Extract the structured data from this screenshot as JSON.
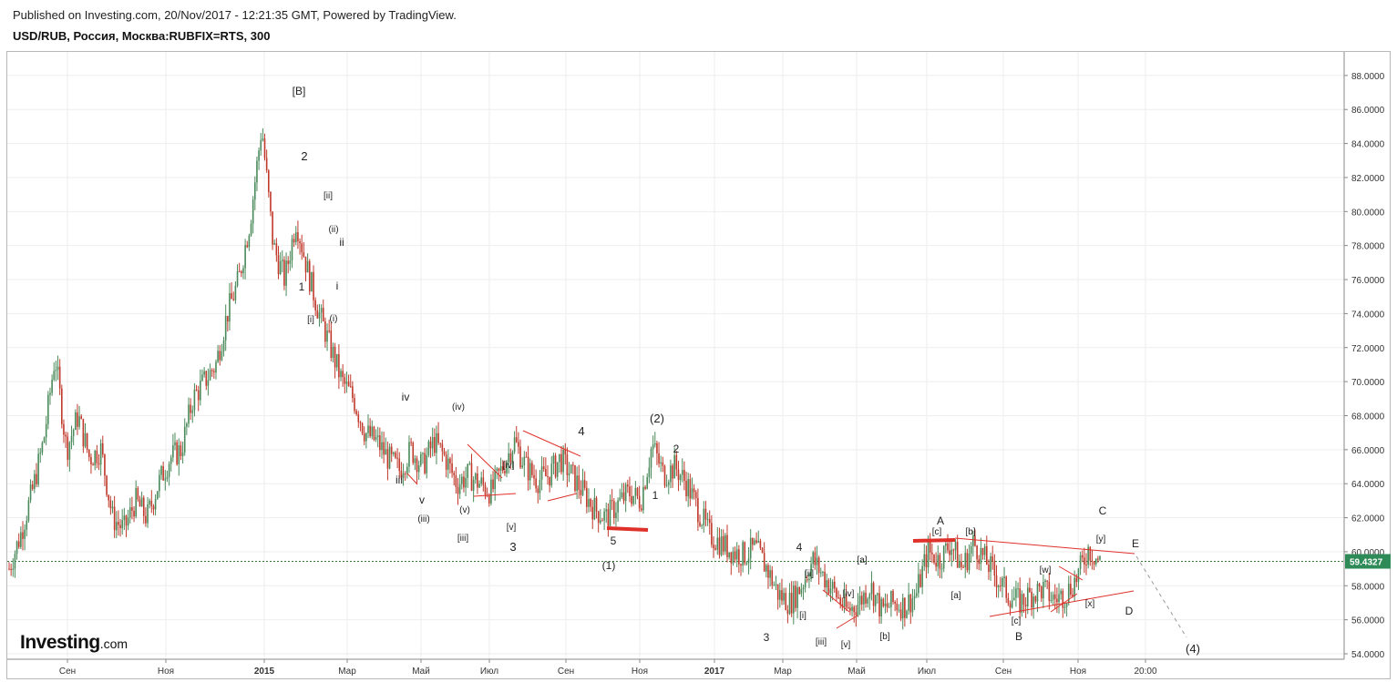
{
  "header": {
    "published": "Published on Investing.com, 20/Nov/2017 - 12:21:35 GMT, Powered by TradingView.",
    "symbol": "USD/RUB, Россия, Москва:RUBFIX=RTS, 300"
  },
  "logo": {
    "main": "Investing",
    "suffix": ".com"
  },
  "colors": {
    "up": "#4a8a5a",
    "down": "#c0392b",
    "annotation": "#e0302a",
    "price_line": "#2e7d32",
    "grid": "#eeeeee"
  },
  "chart_data": {
    "type": "line",
    "title": "USD/RUB, Россия, Москва:RUBFIX=RTS, 300",
    "ylim": [
      54,
      89
    ],
    "x_ticks": [
      "Сен",
      "Ноя",
      "2015",
      "Мар",
      "Май",
      "Июл",
      "Сен",
      "Ноя",
      "2017",
      "Мар",
      "Май",
      "Июл",
      "Сен",
      "Ноя",
      "20:00"
    ],
    "y_ticks": [
      "54.0000",
      "56.0000",
      "58.0000",
      "60.0000",
      "62.0000",
      "64.0000",
      "66.0000",
      "68.0000",
      "70.0000",
      "72.0000",
      "74.0000",
      "76.0000",
      "78.0000",
      "80.0000",
      "82.0000",
      "84.0000",
      "86.0000",
      "88.0000"
    ],
    "current_price": "59.4327",
    "series": [
      {
        "values": [
          {
            "x": "2014-08",
            "y": 59.0
          },
          {
            "x": "2014-08",
            "y": 61.0
          },
          {
            "x": "2014-08",
            "y": 63.5
          },
          {
            "x": "2014-09",
            "y": 66.5
          },
          {
            "x": "2014-09",
            "y": 71.5
          },
          {
            "x": "2014-09",
            "y": 66.0
          },
          {
            "x": "2014-10",
            "y": 68.0
          },
          {
            "x": "2014-10",
            "y": 65.5
          },
          {
            "x": "2014-10",
            "y": 66.0
          },
          {
            "x": "2014-11",
            "y": 62.0
          },
          {
            "x": "2014-11",
            "y": 61.3
          },
          {
            "x": "2014-11",
            "y": 63.0
          },
          {
            "x": "2014-12",
            "y": 62.0
          },
          {
            "x": "2014-12",
            "y": 64.0
          },
          {
            "x": "2014-12",
            "y": 65.5
          },
          {
            "x": "2014-12",
            "y": 66.0
          },
          {
            "x": "2015-01",
            "y": 69.0
          },
          {
            "x": "2015-01",
            "y": 70.0
          },
          {
            "x": "2015-01",
            "y": 71.0
          },
          {
            "x": "2015-01",
            "y": 74.0
          },
          {
            "x": "2015-02",
            "y": 76.0
          },
          {
            "x": "2015-02",
            "y": 79.5
          },
          {
            "x": "2015-02",
            "y": 85.0
          },
          {
            "x": "2015-02",
            "y": 78.0
          },
          {
            "x": "2015-02",
            "y": 76.0
          },
          {
            "x": "2015-02",
            "y": 79.5
          },
          {
            "x": "2015-03",
            "y": 76.5
          },
          {
            "x": "2015-03",
            "y": 74.0
          },
          {
            "x": "2015-03",
            "y": 72.0
          },
          {
            "x": "2015-03",
            "y": 70.0
          },
          {
            "x": "2015-04",
            "y": 69.0
          },
          {
            "x": "2015-04",
            "y": 67.0
          },
          {
            "x": "2015-04",
            "y": 66.5
          },
          {
            "x": "2015-04",
            "y": 65.5
          },
          {
            "x": "2015-05",
            "y": 64.8
          },
          {
            "x": "2015-05",
            "y": 66.0
          },
          {
            "x": "2015-05",
            "y": 65.0
          },
          {
            "x": "2015-05",
            "y": 66.5
          },
          {
            "x": "2015-06",
            "y": 65.5
          },
          {
            "x": "2015-06",
            "y": 64.0
          },
          {
            "x": "2015-06",
            "y": 64.5
          },
          {
            "x": "2015-07",
            "y": 64.0
          },
          {
            "x": "2015-07",
            "y": 63.5
          },
          {
            "x": "2015-07",
            "y": 65.0
          },
          {
            "x": "2015-08",
            "y": 66.5
          },
          {
            "x": "2015-08",
            "y": 65.0
          },
          {
            "x": "2015-08",
            "y": 64.2
          },
          {
            "x": "2015-09",
            "y": 64.5
          },
          {
            "x": "2015-09",
            "y": 65.5
          },
          {
            "x": "2015-09",
            "y": 64.5
          },
          {
            "x": "2015-10",
            "y": 63.5
          },
          {
            "x": "2015-10",
            "y": 62.5
          },
          {
            "x": "2015-10",
            "y": 62.0
          },
          {
            "x": "2015-11",
            "y": 62.8
          },
          {
            "x": "2015-11",
            "y": 63.5
          },
          {
            "x": "2015-11",
            "y": 63.0
          },
          {
            "x": "2015-11",
            "y": 66.3
          },
          {
            "x": "2015-12",
            "y": 64.5
          },
          {
            "x": "2015-12",
            "y": 65.0
          },
          {
            "x": "2015-12",
            "y": 64.0
          },
          {
            "x": "2016-01",
            "y": 62.5
          },
          {
            "x": "2016-01",
            "y": 61.0
          },
          {
            "x": "2016-01",
            "y": 60.5
          },
          {
            "x": "2016-02",
            "y": 60.0
          },
          {
            "x": "2016-02",
            "y": 59.8
          },
          {
            "x": "2016-02",
            "y": 60.2
          },
          {
            "x": "2016-03",
            "y": 59.0
          },
          {
            "x": "2016-03",
            "y": 57.5
          },
          {
            "x": "2016-03",
            "y": 57.0
          },
          {
            "x": "2016-04",
            "y": 58.0
          },
          {
            "x": "2016-04",
            "y": 59.5
          },
          {
            "x": "2016-04",
            "y": 58.5
          },
          {
            "x": "2016-04",
            "y": 57.5
          },
          {
            "x": "2016-05",
            "y": 56.5
          },
          {
            "x": "2016-05",
            "y": 57.0
          },
          {
            "x": "2016-05",
            "y": 58.0
          },
          {
            "x": "2016-05",
            "y": 56.5
          },
          {
            "x": "2016-06",
            "y": 57.0
          },
          {
            "x": "2016-06",
            "y": 56.8
          },
          {
            "x": "2016-06",
            "y": 57.5
          },
          {
            "x": "2016-07",
            "y": 60.0
          },
          {
            "x": "2016-07",
            "y": 59.5
          },
          {
            "x": "2016-07",
            "y": 60.5
          },
          {
            "x": "2016-08",
            "y": 59.0
          },
          {
            "x": "2016-08",
            "y": 60.5
          },
          {
            "x": "2016-08",
            "y": 59.5
          },
          {
            "x": "2016-09",
            "y": 58.5
          },
          {
            "x": "2016-09",
            "y": 57.5
          },
          {
            "x": "2016-09",
            "y": 57.0
          },
          {
            "x": "2016-10",
            "y": 57.5
          },
          {
            "x": "2016-10",
            "y": 57.8
          },
          {
            "x": "2016-10",
            "y": 57.2
          },
          {
            "x": "2016-11",
            "y": 57.5
          },
          {
            "x": "2016-11",
            "y": 58.5
          },
          {
            "x": "2016-11",
            "y": 60.2
          },
          {
            "x": "2016-11",
            "y": 59.4
          }
        ]
      }
    ],
    "annotations": [
      "[B]",
      "2",
      "[ii]",
      "(ii)",
      "ii",
      "1",
      "[i]",
      "(i)",
      "i",
      "iv",
      "(iv)",
      "iii",
      "v",
      "(iii)",
      "(v)",
      "[iii]",
      "[iv]",
      "[v]",
      "3",
      "4",
      "5",
      "(1)",
      "(2)",
      "2",
      "1",
      "4",
      "[ii]",
      "3",
      "[i]",
      "[iii]",
      "[iv]",
      "[v]",
      "[a]",
      "[b]",
      "A",
      "[c]",
      "[b]",
      "[a]",
      "[c]",
      "B",
      "[w]",
      "[x]",
      "[y]",
      "C",
      "E",
      "D",
      "(4)"
    ]
  }
}
